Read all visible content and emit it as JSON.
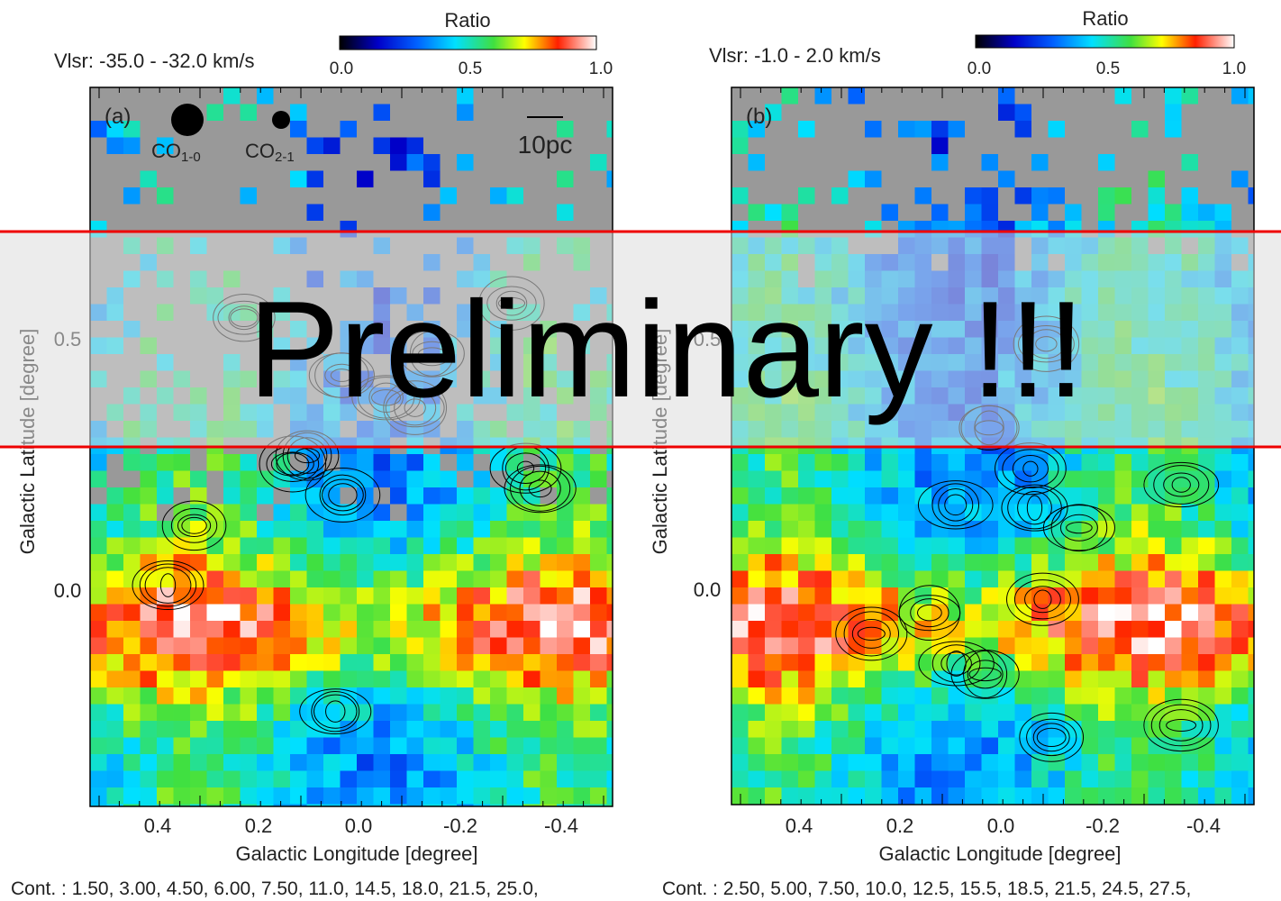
{
  "overlay": "Preliminary !!!",
  "panels": [
    {
      "label": "(a)",
      "velocity": "Vlsr: -35.0 - -32.0 km/s",
      "colorbar": {
        "title": "Ratio",
        "ticks": [
          "0.0",
          "0.5",
          "1.0"
        ]
      },
      "xticks": [
        "0.4",
        "0.2",
        "0.0",
        "-0.2",
        "-0.4"
      ],
      "yticks": [
        "0.5",
        "0.0"
      ],
      "xlabel": "Galactic Longitude [degree]",
      "ylabel": "Galactic Latitude [degree]",
      "beams": [
        {
          "name": "CO",
          "sub": "1-0"
        },
        {
          "name": "CO",
          "sub": "2-1"
        }
      ],
      "scale": "10pc",
      "contours": "Cont. : 1.50, 3.00, 4.50, 6.00, 7.50, 11.0, 14.5, 18.0, 21.5, 25.0,"
    },
    {
      "label": "(b)",
      "velocity": "Vlsr: -1.0 - 2.0 km/s",
      "colorbar": {
        "title": "Ratio",
        "ticks": [
          "0.0",
          "0.5",
          "1.0"
        ]
      },
      "xticks": [
        "0.4",
        "0.2",
        "0.0",
        "-0.2",
        "-0.4"
      ],
      "yticks": [
        "0.5",
        "0.0"
      ],
      "xlabel": "Galactic Longitude [degree]",
      "ylabel": "Galactic Latitude [degree]",
      "contours": "Cont. : 2.50, 5.00, 7.50, 10.0, 12.5, 15.5, 18.5, 21.5, 24.5, 27.5,"
    }
  ]
}
